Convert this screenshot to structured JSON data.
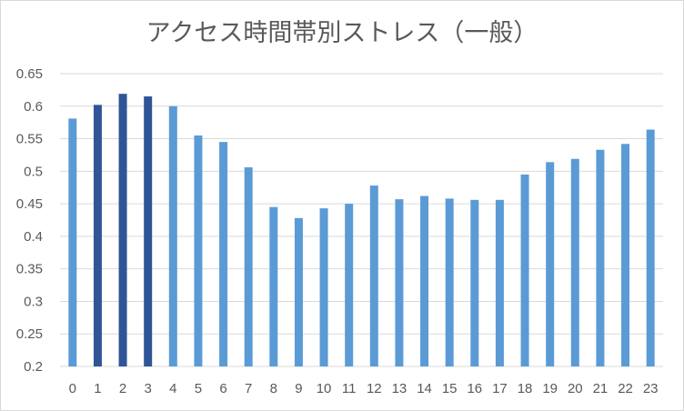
{
  "chart_data": {
    "type": "bar",
    "title": "アクセス時間帯別ストレス（一般）",
    "xlabel": "",
    "ylabel": "",
    "categories": [
      "0",
      "1",
      "2",
      "3",
      "4",
      "5",
      "6",
      "7",
      "8",
      "9",
      "10",
      "11",
      "12",
      "13",
      "14",
      "15",
      "16",
      "17",
      "18",
      "19",
      "20",
      "21",
      "22",
      "23"
    ],
    "values": [
      0.581,
      0.602,
      0.619,
      0.615,
      0.6,
      0.555,
      0.545,
      0.506,
      0.445,
      0.428,
      0.443,
      0.45,
      0.478,
      0.457,
      0.462,
      0.458,
      0.456,
      0.456,
      0.495,
      0.514,
      0.519,
      0.533,
      0.542,
      0.564
    ],
    "highlighted": [
      1,
      2,
      3
    ],
    "ylim": [
      0.2,
      0.65
    ],
    "yticks": [
      "0.2",
      "0.25",
      "0.3",
      "0.35",
      "0.4",
      "0.45",
      "0.5",
      "0.55",
      "0.6",
      "0.65"
    ],
    "grid": true,
    "legend": "none",
    "colors": {
      "bar": "#5b9bd5",
      "highlight": "#2f5597",
      "grid": "#d9d9d9",
      "text": "#595959"
    }
  }
}
